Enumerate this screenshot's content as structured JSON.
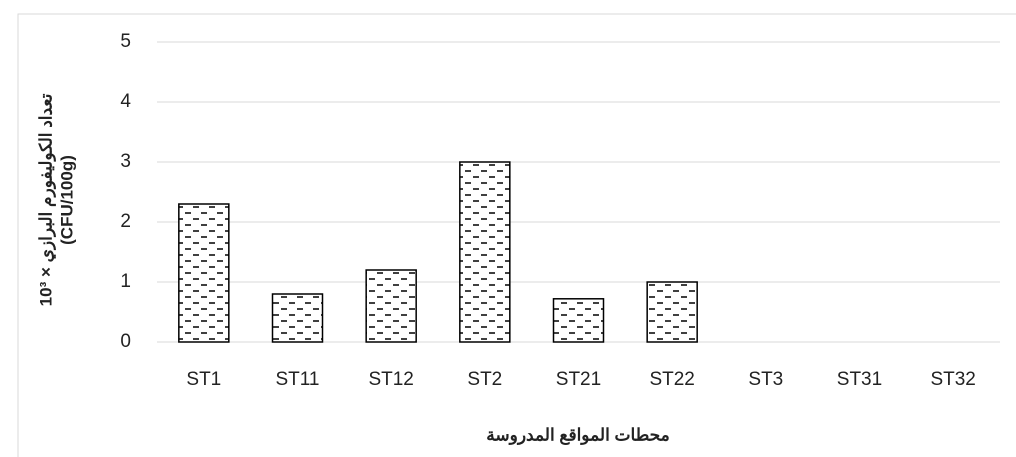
{
  "chart_data": {
    "type": "bar",
    "y_label": [
      "10³ × تعداد الكوليفورم البرازي",
      "(CFU/100g)"
    ],
    "x_label": "محطات المواقع المدروسة",
    "categories": [
      "ST1",
      "ST11",
      "ST12",
      "ST2",
      "ST21",
      "ST22",
      "ST3",
      "ST31",
      "ST32"
    ],
    "values": [
      2.3,
      0.8,
      1.2,
      3.0,
      0.72,
      1.0,
      0,
      0,
      0
    ],
    "color": "#000000",
    "ylim": [
      0,
      5
    ],
    "yticks": [
      0,
      1,
      2,
      3,
      4,
      5
    ],
    "grid": true
  }
}
